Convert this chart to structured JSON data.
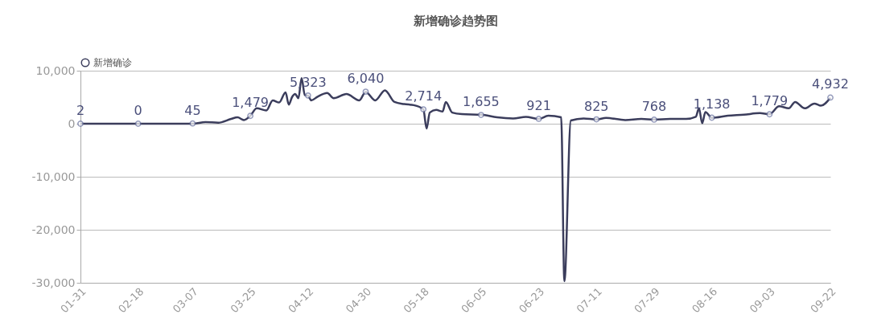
{
  "chart_data": {
    "type": "line",
    "title": "新增确诊趋势图",
    "legend": "top",
    "xlim": [
      "--01-31",
      "--09-22"
    ],
    "xticks": [
      {
        "value": "--01-31",
        "label": "01-31"
      },
      {
        "value": "--02-18",
        "label": "02-18"
      },
      {
        "value": "--03-07",
        "label": "03-07"
      },
      {
        "value": "--03-25",
        "label": "03-25"
      },
      {
        "value": "--04-12",
        "label": "04-12"
      },
      {
        "value": "--04-30",
        "label": "04-30"
      },
      {
        "value": "--05-18",
        "label": "05-18"
      },
      {
        "value": "--06-05",
        "label": "06-05"
      },
      {
        "value": "--06-23",
        "label": "06-23"
      },
      {
        "value": "--07-11",
        "label": "07-11"
      },
      {
        "value": "--07-29",
        "label": "07-29"
      },
      {
        "value": "--08-16",
        "label": "08-16"
      },
      {
        "value": "--09-03",
        "label": "09-03"
      },
      {
        "value": "--09-22",
        "label": "09-22"
      }
    ],
    "ylim": [
      -30000,
      10000
    ],
    "yticks": [
      {
        "value": -30000,
        "label": "-30,000"
      },
      {
        "value": -20000,
        "label": "-20,000"
      },
      {
        "value": -10000,
        "label": "-10,000"
      },
      {
        "value": 0,
        "label": "0"
      },
      {
        "value": 10000,
        "label": "10,000"
      }
    ],
    "grid": "y",
    "line_style": "solid",
    "series": [
      {
        "name": "新增确诊",
        "color": "#3b3d5c",
        "marker": "none",
        "x": [
          "--01-31",
          "--02-10",
          "--02-18",
          "--02-28",
          "--03-03",
          "--03-07",
          "--03-11",
          "--03-15",
          "--03-19",
          "--03-21",
          "--03-23",
          "--03-25",
          "--03-27",
          "--03-30",
          "--04-01",
          "--04-03",
          "--04-05",
          "--04-06",
          "--04-07",
          "--04-08",
          "--04-09",
          "--04-10",
          "--04-11",
          "--04-12",
          "--04-13",
          "--04-15",
          "--04-18",
          "--04-20",
          "--04-24",
          "--04-28",
          "--04-30",
          "--05-03",
          "--05-06",
          "--05-09",
          "--05-12",
          "--05-15",
          "--05-18",
          "--05-19",
          "--05-20",
          "--05-22",
          "--05-24",
          "--05-25",
          "--05-27",
          "--05-30",
          "--06-05",
          "--06-10",
          "--06-15",
          "--06-19",
          "--06-23",
          "--06-26",
          "--06-30",
          "--07-01",
          "--07-03",
          "--07-07",
          "--07-11",
          "--07-14",
          "--07-20",
          "--07-25",
          "--07-29",
          "--08-03",
          "--08-08",
          "--08-11",
          "--08-12",
          "--08-13",
          "--08-14",
          "--08-16",
          "--08-21",
          "--08-26",
          "--08-31",
          "--09-03",
          "--09-06",
          "--09-09",
          "--09-11",
          "--09-14",
          "--09-17",
          "--09-19",
          "--09-22"
        ],
        "values": [
          0,
          0,
          0,
          0,
          0,
          0,
          300,
          200,
          900,
          1200,
          700,
          1500,
          2900,
          2500,
          4400,
          4000,
          5900,
          3600,
          5000,
          5600,
          4800,
          8600,
          5400,
          5300,
          4400,
          5100,
          5800,
          4800,
          5600,
          4400,
          6000,
          4400,
          6300,
          4100,
          3700,
          3500,
          2700,
          -900,
          2100,
          2600,
          2300,
          4100,
          2100,
          1800,
          1700,
          1200,
          1000,
          1300,
          900,
          1500,
          1200,
          -29700,
          600,
          1000,
          800,
          1100,
          700,
          900,
          800,
          900,
          900,
          1300,
          2900,
          100,
          2200,
          1100,
          1500,
          1700,
          2000,
          1800,
          3300,
          2900,
          4100,
          2900,
          3800,
          3400,
          4900
        ]
      },
      {
        "type": "scatter",
        "color": "#6a73a0",
        "marker": "circle",
        "x": [
          "--01-31",
          "--02-18",
          "--03-07",
          "--03-25",
          "--04-12",
          "--04-30",
          "--05-18",
          "--06-05",
          "--06-23",
          "--07-11",
          "--07-29",
          "--08-16",
          "--09-03",
          "--09-22"
        ],
        "values": [
          2,
          0,
          45,
          1479,
          5323,
          6040,
          2714,
          1655,
          921,
          825,
          768,
          1138,
          1779,
          4932
        ],
        "value_labels": [
          "2",
          "0",
          "45",
          "1,479",
          "5,323",
          "6,040",
          "2,714",
          "1,655",
          "921",
          "825",
          "768",
          "1,138",
          "1,779",
          "4,932"
        ]
      }
    ]
  }
}
